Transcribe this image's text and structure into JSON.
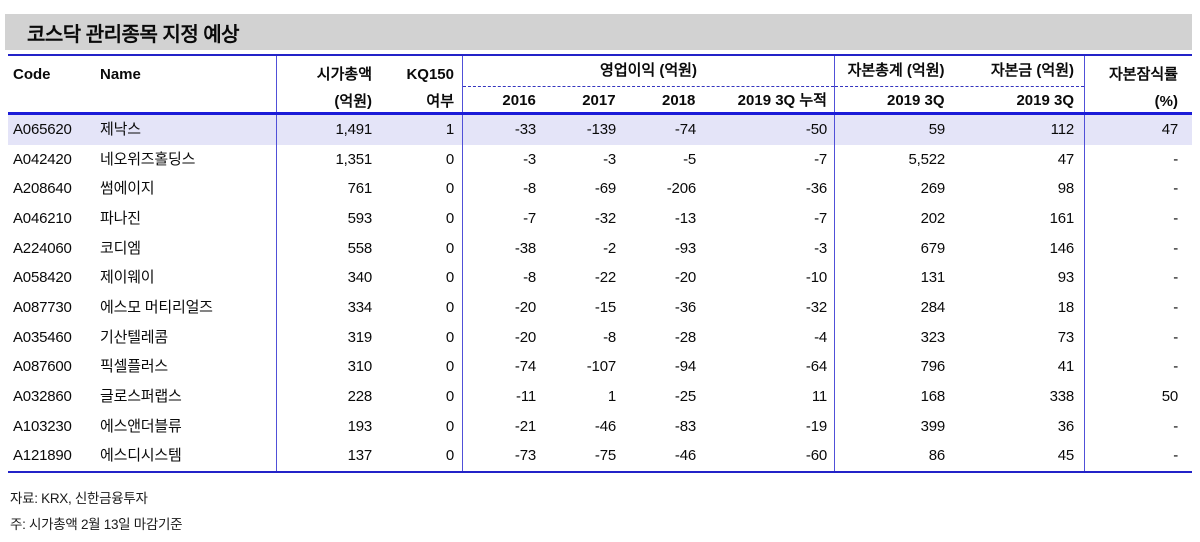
{
  "title": "코스닥 관리종목 지정 예상",
  "header": {
    "code": "Code",
    "name": "Name",
    "market_cap": [
      "시가총액",
      "(억원)"
    ],
    "kq150": [
      "KQ150",
      "여부"
    ],
    "operating_profit_group": "영업이익 (억원)",
    "op_years": [
      "2016",
      "2017",
      "2018",
      "2019 3Q 누적"
    ],
    "total_equity": "자본총계 (억원)",
    "capital_stock": "자본금 (억원)",
    "period": "2019 3Q",
    "impairment": [
      "자본잠식률",
      "(%)"
    ]
  },
  "rows": [
    [
      "A065620",
      "제낙스",
      "1,491",
      "1",
      "-33",
      "-139",
      "-74",
      "-50",
      "59",
      "112",
      "47"
    ],
    [
      "A042420",
      "네오위즈홀딩스",
      "1,351",
      "0",
      "-3",
      "-3",
      "-5",
      "-7",
      "5,522",
      "47",
      "-"
    ],
    [
      "A208640",
      "썸에이지",
      "761",
      "0",
      "-8",
      "-69",
      "-206",
      "-36",
      "269",
      "98",
      "-"
    ],
    [
      "A046210",
      "파나진",
      "593",
      "0",
      "-7",
      "-32",
      "-13",
      "-7",
      "202",
      "161",
      "-"
    ],
    [
      "A224060",
      "코디엠",
      "558",
      "0",
      "-38",
      "-2",
      "-93",
      "-3",
      "679",
      "146",
      "-"
    ],
    [
      "A058420",
      "제이웨이",
      "340",
      "0",
      "-8",
      "-22",
      "-20",
      "-10",
      "131",
      "93",
      "-"
    ],
    [
      "A087730",
      "에스모 머티리얼즈",
      "334",
      "0",
      "-20",
      "-15",
      "-36",
      "-32",
      "284",
      "18",
      "-"
    ],
    [
      "A035460",
      "기산텔레콤",
      "319",
      "0",
      "-20",
      "-8",
      "-28",
      "-4",
      "323",
      "73",
      "-"
    ],
    [
      "A087600",
      "픽셀플러스",
      "310",
      "0",
      "-74",
      "-107",
      "-94",
      "-64",
      "796",
      "41",
      "-"
    ],
    [
      "A032860",
      "글로스퍼랩스",
      "228",
      "0",
      "-11",
      "1",
      "-25",
      "11",
      "168",
      "338",
      "50"
    ],
    [
      "A103230",
      "에스앤더블류",
      "193",
      "0",
      "-21",
      "-46",
      "-83",
      "-19",
      "399",
      "36",
      "-"
    ],
    [
      "A121890",
      "에스디시스템",
      "137",
      "0",
      "-73",
      "-75",
      "-46",
      "-60",
      "86",
      "45",
      "-"
    ]
  ],
  "highlight_row_index": 0,
  "footnotes": {
    "source": "자료: KRX, 신한금융투자",
    "note": "주: 시가총액 2월 13일 마감기준"
  },
  "colors": {
    "border_blue": "#2323C8",
    "thick_blue": "#1B1BD8",
    "vline_blue": "#5050D8",
    "dash_blue": "#3434BE",
    "highlight": "#E4E4F8",
    "title_band": "#D2D2D2"
  }
}
